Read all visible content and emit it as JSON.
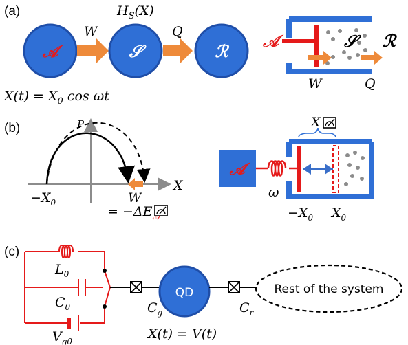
{
  "colors": {
    "blue": "#2f6fd6",
    "dark_blue": "#1f4ea8",
    "red": "#e51a1a",
    "orange": "#ee8a3a",
    "gray": "#8c8c8c",
    "black": "#000000"
  },
  "panel_a": {
    "label": "(a)",
    "agent": "𝒜",
    "system": "𝒮",
    "reservoir": "ℛ",
    "hamiltonian": "H_S(X)",
    "work": "W",
    "heat": "Q",
    "protocol": "X(t) = X_0 cos ωt",
    "piston_agent": "𝒜",
    "piston_system": "𝒮",
    "piston_reservoir": "ℛ",
    "piston_work": "W",
    "piston_heat": "Q"
  },
  "panel_b": {
    "label": "(b)",
    "axis_p": "P",
    "axis_x": "X",
    "tick_minus_x0": "−X_0",
    "work": "W",
    "energy_relation": "= −ΔE_𝒜",
    "agent": "𝒜",
    "omega": "ω",
    "x_measure": "X",
    "piston_minus_x0": "−X_0",
    "piston_x0": "X_0"
  },
  "panel_c": {
    "label": "(c)",
    "inductor": "L_0",
    "capacitor": "C_0",
    "voltage": "V_g0",
    "gate_cap": "C_g",
    "qd": "QD",
    "right_cap": "C_r",
    "rest": "Rest of the system",
    "protocol": "X(t) = V(t)"
  }
}
